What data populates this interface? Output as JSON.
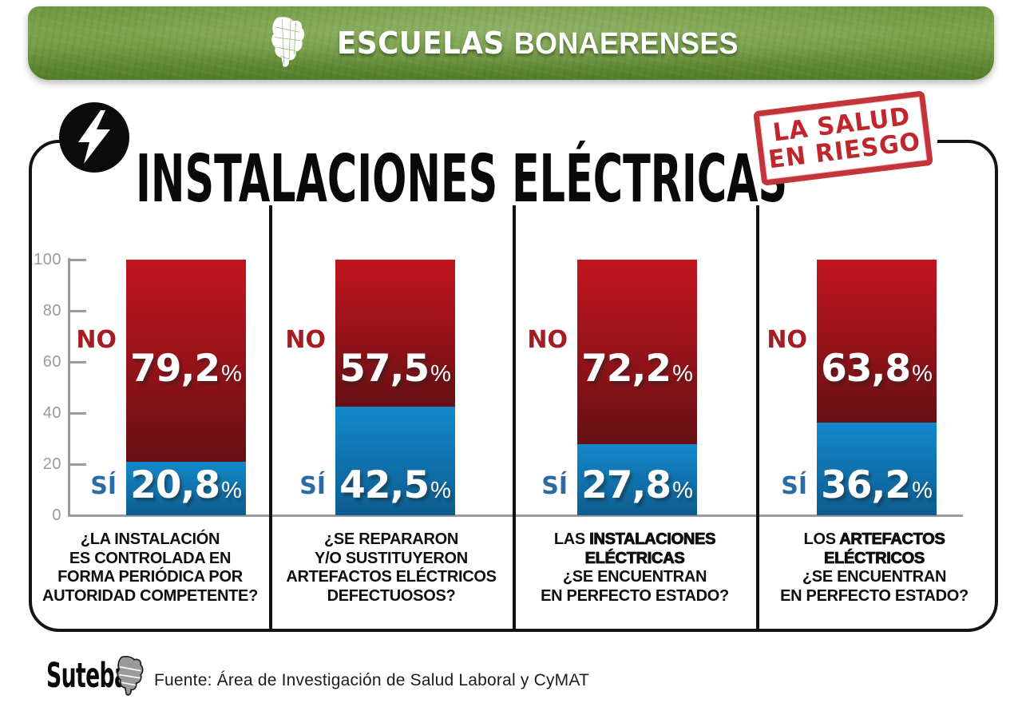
{
  "banner": {
    "brand_bold": "ESCUELAS",
    "brand_light": "BONAERENSES"
  },
  "header": {
    "title": "INSTALACIONES ELÉCTRICAS",
    "stamp": [
      "LA SALUD",
      "EN RIESGO"
    ]
  },
  "chart_data": {
    "type": "bar",
    "stacked": true,
    "title": "INSTALACIONES ELÉCTRICAS",
    "subtitle_stamp": "LA SALUD EN RIESGO",
    "value_suffix": "%",
    "ylim": [
      0,
      100
    ],
    "yticks": [
      0,
      20,
      40,
      60,
      80,
      100
    ],
    "grid": false,
    "legend": {
      "no": "NO",
      "yes": "SÍ"
    },
    "legend_position": "left-of-bar",
    "colors": {
      "no_top": "#c2151f",
      "no_bottom": "#671013",
      "yes_top": "#1389cb",
      "yes_bottom": "#0d5c8d",
      "no_label": "#a41d23",
      "yes_label": "#2b6aa3",
      "axis": "#9b9b9b",
      "stamp_red": "#c0272d",
      "banner_green": "#6f9a40"
    },
    "categories": [
      "¿LA INSTALACIÓN ES CONTROLADA EN FORMA PERIÓDICA POR AUTORIDAD COMPETENTE?",
      "¿SE REPARARON Y/O SUSTITUYERON ARTEFACTOS ELÉCTRICOS DEFECTUOSOS?",
      "LAS INSTALACIONES ELÉCTRICAS ¿SE ENCUENTRAN EN PERFECTO ESTADO?",
      "LOS ARTEFACTOS ELÉCTRICOS ¿SE ENCUENTRAN EN PERFECTO ESTADO?"
    ],
    "series": [
      {
        "name": "NO",
        "values": [
          79.2,
          57.5,
          72.2,
          63.8
        ]
      },
      {
        "name": "SÍ",
        "values": [
          20.8,
          42.5,
          27.8,
          36.2
        ]
      }
    ],
    "items": [
      {
        "no": 79.2,
        "yes": 20.8,
        "no_display": "79,2",
        "yes_display": "20,8",
        "question_lines": [
          [
            {
              "text": "¿LA INSTALACIÓN",
              "strong": false
            }
          ],
          [
            {
              "text": "ES CONTROLADA EN",
              "strong": false
            }
          ],
          [
            {
              "text": "FORMA PERIÓDICA POR",
              "strong": false
            }
          ],
          [
            {
              "text": "AUTORIDAD COMPETENTE?",
              "strong": false
            }
          ]
        ]
      },
      {
        "no": 57.5,
        "yes": 42.5,
        "no_display": "57,5",
        "yes_display": "42,5",
        "question_lines": [
          [
            {
              "text": "¿SE REPARARON",
              "strong": false
            }
          ],
          [
            {
              "text": "Y/O SUSTITUYERON",
              "strong": false
            }
          ],
          [
            {
              "text": "ARTEFACTOS ELÉCTRICOS",
              "strong": false
            }
          ],
          [
            {
              "text": "DEFECTUOSOS?",
              "strong": false
            }
          ]
        ]
      },
      {
        "no": 72.2,
        "yes": 27.8,
        "no_display": "72,2",
        "yes_display": "27,8",
        "question_lines": [
          [
            {
              "text": "LAS ",
              "strong": false
            },
            {
              "text": "INSTALACIONES",
              "strong": true
            }
          ],
          [
            {
              "text": "ELÉCTRICAS",
              "strong": true
            }
          ],
          [
            {
              "text": "¿SE ENCUENTRAN",
              "strong": false
            }
          ],
          [
            {
              "text": "EN PERFECTO ESTADO?",
              "strong": false
            }
          ]
        ]
      },
      {
        "no": 63.8,
        "yes": 36.2,
        "no_display": "63,8",
        "yes_display": "36,2",
        "question_lines": [
          [
            {
              "text": "LOS ",
              "strong": false
            },
            {
              "text": "ARTEFACTOS",
              "strong": true
            }
          ],
          [
            {
              "text": "ELÉCTRICOS",
              "strong": true
            }
          ],
          [
            {
              "text": "¿SE ENCUENTRAN",
              "strong": false
            }
          ],
          [
            {
              "text": "EN PERFECTO ESTADO?",
              "strong": false
            }
          ]
        ]
      }
    ]
  },
  "footer": {
    "logo_text": "Suteba",
    "source": "Fuente: Área de Investigación de Salud Laboral y CyMAT"
  }
}
